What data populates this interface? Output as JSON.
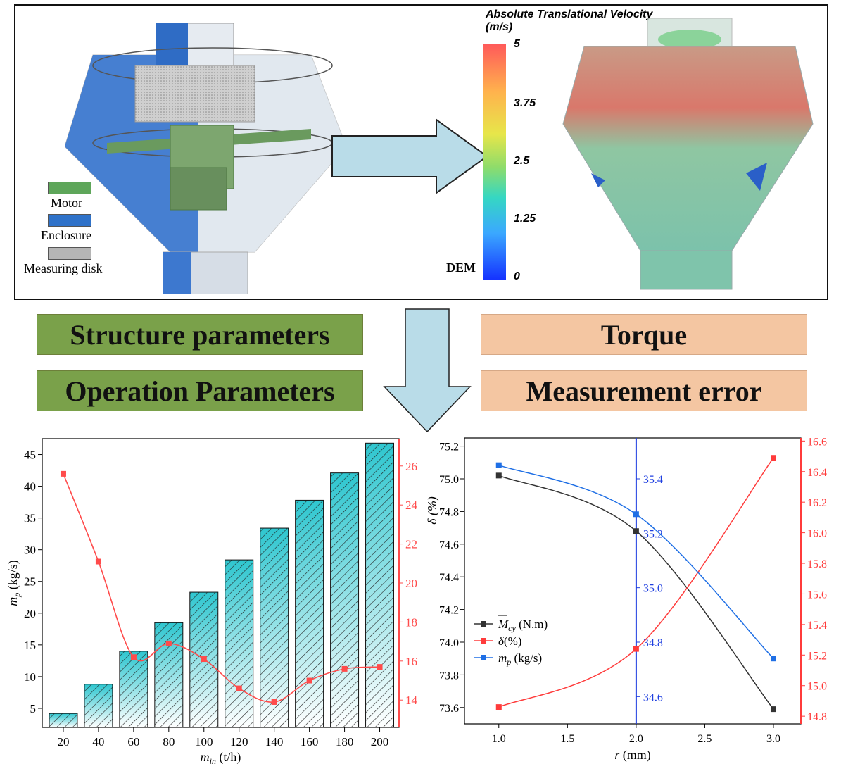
{
  "top_panel": {
    "legend": [
      {
        "label": "Motor",
        "color": "#5ea65a"
      },
      {
        "label": "Enclosure",
        "color": "#2f72c9"
      },
      {
        "label": "Measuring disk",
        "color": "#b5b5b5"
      }
    ],
    "colorbar": {
      "title_line1": "Absolute Translational Velocity",
      "title_line2": "(m/s)",
      "ticks": [
        "5",
        "3.75",
        "2.5",
        "1.25",
        "0"
      ],
      "side_label": "DEM"
    }
  },
  "boxes": {
    "structure": "Structure parameters",
    "operation": "Operation Parameters",
    "torque": "Torque",
    "error": "Measurement error"
  },
  "chart_data": [
    {
      "type": "bar",
      "xlabel": "m",
      "xlabel_sub": "in",
      "xlabel_unit": " (t/h)",
      "ylabel": "m",
      "ylabel_sub": "p",
      "ylabel_unit": " (kg/s)",
      "categories": [
        "20",
        "40",
        "60",
        "80",
        "100",
        "120",
        "140",
        "160",
        "180",
        "200"
      ],
      "series": [
        {
          "values": [
            4.2,
            8.8,
            14.0,
            18.5,
            23.3,
            28.4,
            33.4,
            37.8,
            42.1,
            46.8
          ],
          "axis": "left",
          "color": "#2ec6cf"
        },
        {
          "values": [
            25.6,
            21.1,
            16.2,
            16.9,
            16.1,
            14.6,
            13.9,
            15.0,
            15.6,
            15.7
          ],
          "axis": "right",
          "color": "#ff4b4b"
        }
      ],
      "left_ylim": [
        2,
        47.5
      ],
      "left_ticks": [
        "5",
        "10",
        "15",
        "20",
        "25",
        "30",
        "35",
        "40",
        "45"
      ],
      "right_ylim": [
        12.6,
        27.4
      ],
      "right_ticks": [
        "14",
        "16",
        "18",
        "20",
        "22",
        "24",
        "26"
      ]
    },
    {
      "type": "line",
      "xlabel": "r",
      "xlabel_unit": " (mm)",
      "ylabel": "δ (%)",
      "x": [
        1.0,
        2.0,
        3.0
      ],
      "x_ticks": [
        "1.0",
        "1.5",
        "2.0",
        "2.5",
        "3.0"
      ],
      "xlim": [
        0.75,
        3.2
      ],
      "series": [
        {
          "name_main": "M",
          "name_sub": "cy",
          "name_unit": " (N.m)",
          "color": "#333333",
          "axis": "left",
          "values": [
            75.02,
            74.68,
            73.59
          ]
        },
        {
          "name_main": "δ",
          "name_sub": "",
          "name_unit": "(%)",
          "color": "#ff3b3b",
          "axis": "right",
          "values": [
            14.86,
            15.24,
            16.49
          ]
        },
        {
          "name_main": "m",
          "name_sub": "p",
          "name_unit": " (kg/s)",
          "color": "#1f6fe5",
          "axis": "middle",
          "values": [
            35.45,
            35.27,
            34.74
          ]
        }
      ],
      "left_ylim": [
        73.5,
        75.25
      ],
      "left_ticks": [
        "73.6",
        "73.8",
        "74.0",
        "74.2",
        "74.4",
        "74.6",
        "74.8",
        "75.0",
        "75.2"
      ],
      "middle_ylim": [
        34.5,
        35.55
      ],
      "middle_ticks": [
        "34.6",
        "34.8",
        "35.0",
        "35.2",
        "35.4"
      ],
      "right_ylim": [
        14.75,
        16.62
      ],
      "right_ticks": [
        "14.8",
        "15.0",
        "15.2",
        "15.4",
        "15.6",
        "15.8",
        "16.0",
        "16.2",
        "16.4",
        "16.6"
      ]
    }
  ]
}
